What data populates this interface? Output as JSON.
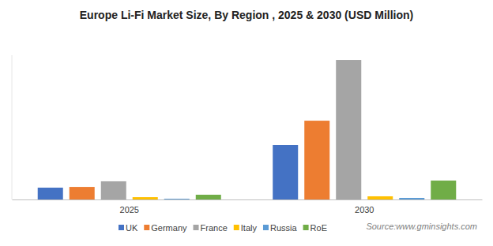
{
  "chart_data": {
    "type": "bar",
    "title": "Europe Li-Fi Market Size, By Region , 2025 & 2030 (USD Million)",
    "source": "Source:www.gminsights.com",
    "categories": [
      "2025",
      "2030"
    ],
    "series": [
      {
        "name": "UK",
        "color": "#4472c4",
        "values": [
          8.2,
          37.7
        ]
      },
      {
        "name": "Germany",
        "color": "#ed7d31",
        "values": [
          8.7,
          54.6
        ]
      },
      {
        "name": "France",
        "color": "#a5a5a5",
        "values": [
          12.6,
          96.7
        ]
      },
      {
        "name": "Italy",
        "color": "#ffc000",
        "values": [
          1.6,
          2.2
        ]
      },
      {
        "name": "Russia",
        "color": "#5b9bd5",
        "values": [
          0.5,
          1.1
        ]
      },
      {
        "name": "RoE",
        "color": "#70ad47",
        "values": [
          3.3,
          13.1
        ]
      }
    ],
    "ylim": [
      0,
      100
    ],
    "tick_labels": "x",
    "legend": "bottom",
    "grid": false
  }
}
